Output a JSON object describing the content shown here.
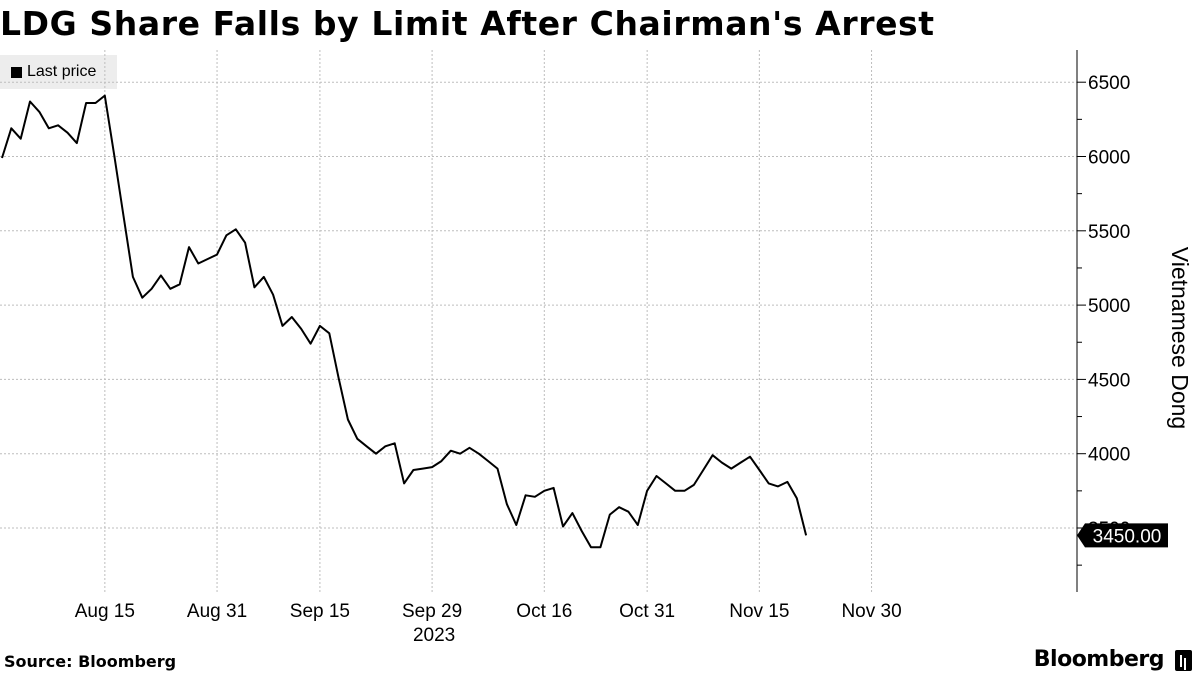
{
  "title": "LDG Share Falls by Limit After Chairman's Arrest",
  "source": "Source: Bloomberg",
  "brand": "Bloomberg",
  "chart_data": {
    "type": "line",
    "title": "LDG Share Falls by Limit After Chairman's Arrest",
    "xlabel": "2023",
    "ylabel": "Vietnamese Dong",
    "ylim": [
      3100,
      6750
    ],
    "y_ticks": [
      3500,
      4000,
      4500,
      5000,
      5500,
      6000,
      6500
    ],
    "y_tick_labels": [
      "3500",
      "4000",
      "4500",
      "5000",
      "5500",
      "6000",
      "6500"
    ],
    "x_tick_labels": [
      "Aug 15",
      "Aug 31",
      "Sep 15",
      "Sep 29",
      "Oct 16",
      "Oct 31",
      "Nov 15",
      "Nov 30"
    ],
    "x_tick_index": [
      11,
      23,
      34,
      46,
      58,
      69,
      81,
      93
    ],
    "year_label": "2023",
    "year_label_index": 46,
    "grid": true,
    "legend": "top-left",
    "last_value_label": "3450.00",
    "series": [
      {
        "name": "Last price",
        "color": "#000000",
        "values": [
          5990,
          6190,
          6120,
          6370,
          6300,
          6190,
          6210,
          6160,
          6090,
          6360,
          6360,
          6410,
          6010,
          5600,
          5190,
          5050,
          5110,
          5200,
          5110,
          5140,
          5390,
          5280,
          5310,
          5340,
          5470,
          5510,
          5420,
          5120,
          5190,
          5070,
          4860,
          4920,
          4840,
          4740,
          4860,
          4810,
          4510,
          4230,
          4100,
          4050,
          4000,
          4050,
          4070,
          3800,
          3890,
          3900,
          3910,
          3950,
          4020,
          4000,
          4040,
          4000,
          3950,
          3900,
          3660,
          3520,
          3720,
          3710,
          3750,
          3770,
          3510,
          3600,
          3480,
          3370,
          3370,
          3590,
          3640,
          3610,
          3520,
          3750,
          3850,
          3800,
          3750,
          3750,
          3790,
          3890,
          3990,
          3940,
          3900,
          3940,
          3980,
          3890,
          3800,
          3780,
          3810,
          3700,
          3450
        ]
      }
    ]
  }
}
